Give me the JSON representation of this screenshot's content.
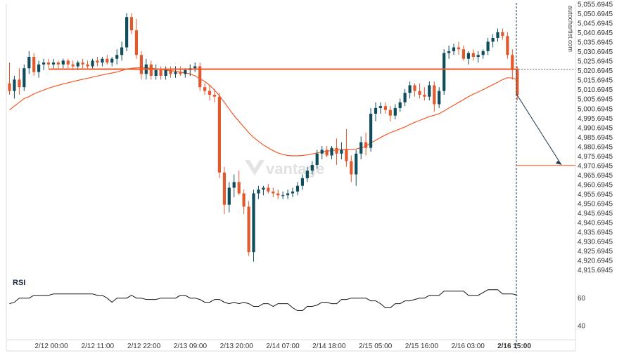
{
  "watermark": {
    "side": "autochartist.com",
    "center": "vantage"
  },
  "rsi_panel": {
    "label": "RSI"
  },
  "colors": {
    "bull": "#0f4c5c",
    "bear": "#e15a2d",
    "ma": "#f05a28",
    "level": "#f05a28",
    "forecast": "#1f3b4d",
    "rsi_line": "#111111",
    "axis": "#dddddd",
    "grid_panel": "#f6f6f6"
  },
  "chart_data": [
    {
      "type": "candlestick",
      "title": "",
      "x_tick_labels": [
        "2/12 00:00",
        "2/12 11:00",
        "2/12 22:00",
        "2/13 09:00",
        "2/13 20:00",
        "2/14 07:00",
        "2/14 18:00",
        "2/15 05:00",
        "2/15 16:00",
        "2/16 03:00",
        "2/16 15:00"
      ],
      "y_tick_labels": [
        "5,055.6945",
        "5,050.6945",
        "5,045.6945",
        "5,040.6945",
        "5,035.6945",
        "5,030.6945",
        "5,025.6945",
        "5,020.6945",
        "5,015.6945",
        "5,010.6945",
        "5,005.6945",
        "5,000.6945",
        "4,995.6945",
        "4,990.6945",
        "4,985.6945",
        "4,980.6945",
        "4,975.6945",
        "4,970.6945",
        "4,965.6945",
        "4,960.6945",
        "4,955.6945",
        "4,950.6945",
        "4,945.6945",
        "4,940.6945",
        "4,935.6945",
        "4,930.6945",
        "4,925.6945",
        "4,920.6945",
        "4,915.6945"
      ],
      "ylim": [
        4912.5,
        5056.5
      ],
      "y_scale": "linear",
      "grid": false,
      "resistance_level": 5021.5,
      "forecast": {
        "from_value": 5008.5,
        "to_value": 4970.7,
        "label_value": 4970.6945
      },
      "marked_time": "2/16 15:00",
      "candles": [
        [
          5014,
          5025,
          5008,
          5010
        ],
        [
          5010,
          5018,
          5006,
          5016
        ],
        [
          5016,
          5022,
          5008,
          5012
        ],
        [
          5012,
          5024,
          5010,
          5022
        ],
        [
          5022,
          5031,
          5019,
          5028
        ],
        [
          5028,
          5030,
          5018,
          5020
        ],
        [
          5020,
          5026,
          5017,
          5024
        ],
        [
          5024,
          5027,
          5021,
          5025
        ],
        [
          5025,
          5027,
          5022,
          5024
        ],
        [
          5024,
          5027,
          5022,
          5025
        ],
        [
          5025,
          5026,
          5022,
          5024
        ],
        [
          5024,
          5027,
          5022,
          5026
        ],
        [
          5026,
          5027,
          5022,
          5024
        ],
        [
          5024,
          5026,
          5021,
          5023
        ],
        [
          5023,
          5026,
          5021,
          5025
        ],
        [
          5025,
          5027,
          5022,
          5024
        ],
        [
          5024,
          5026,
          5022,
          5023
        ],
        [
          5023,
          5027,
          5022,
          5026
        ],
        [
          5026,
          5028,
          5023,
          5025
        ],
        [
          5025,
          5028,
          5023,
          5027
        ],
        [
          5027,
          5029,
          5024,
          5025
        ],
        [
          5025,
          5028,
          5023,
          5027
        ],
        [
          5027,
          5032,
          5024,
          5029
        ],
        [
          5029,
          5036,
          5026,
          5033
        ],
        [
          5033,
          5051,
          5031,
          5049
        ],
        [
          5049,
          5051,
          5040,
          5042
        ],
        [
          5042,
          5048,
          5027,
          5029
        ],
        [
          5029,
          5031,
          5016,
          5019
        ],
        [
          5019,
          5027,
          5016,
          5024
        ],
        [
          5024,
          5026,
          5016,
          5018
        ],
        [
          5018,
          5024,
          5016,
          5021
        ],
        [
          5021,
          5023,
          5016,
          5018
        ],
        [
          5018,
          5023,
          5016,
          5021
        ],
        [
          5021,
          5023,
          5017,
          5019
        ],
        [
          5019,
          5023,
          5017,
          5020
        ],
        [
          5020,
          5023,
          5018,
          5019
        ],
        [
          5019,
          5022,
          5017,
          5021
        ],
        [
          5021,
          5024,
          5018,
          5022
        ],
        [
          5022,
          5025,
          5020,
          5023
        ],
        [
          5023,
          5025,
          5010,
          5012
        ],
        [
          5012,
          5014,
          5008,
          5010
        ],
        [
          5010,
          5013,
          5005,
          5008
        ],
        [
          5008,
          5011,
          5004,
          5007
        ],
        [
          5007,
          5009,
          4964,
          4967
        ],
        [
          4967,
          4970,
          4945,
          4950
        ],
        [
          4950,
          4962,
          4946,
          4959
        ],
        [
          4959,
          4966,
          4954,
          4962
        ],
        [
          4962,
          4968,
          4955,
          4956
        ],
        [
          4956,
          4958,
          4945,
          4949
        ],
        [
          4949,
          4952,
          4923,
          4925
        ],
        [
          4925,
          4958,
          4920,
          4956
        ],
        [
          4956,
          4960,
          4953,
          4958
        ],
        [
          4958,
          4960,
          4955,
          4959
        ],
        [
          4959,
          4961,
          4956,
          4957
        ],
        [
          4957,
          4959,
          4954,
          4956
        ],
        [
          4956,
          4958,
          4953,
          4955
        ],
        [
          4955,
          4957,
          4953,
          4955
        ],
        [
          4955,
          4958,
          4953,
          4956
        ],
        [
          4956,
          4959,
          4954,
          4957
        ],
        [
          4957,
          4962,
          4955,
          4960
        ],
        [
          4960,
          4966,
          4958,
          4964
        ],
        [
          4964,
          4970,
          4962,
          4968
        ],
        [
          4968,
          4973,
          4966,
          4971
        ],
        [
          4971,
          4979,
          4969,
          4977
        ],
        [
          4977,
          4981,
          4974,
          4979
        ],
        [
          4979,
          4981,
          4975,
          4976
        ],
        [
          4976,
          4981,
          4974,
          4980
        ],
        [
          4980,
          4985,
          4971,
          4977
        ],
        [
          4977,
          4983,
          4974,
          4979
        ],
        [
          4979,
          4990,
          4970,
          4973
        ],
        [
          4973,
          4976,
          4962,
          4966
        ],
        [
          4966,
          4979,
          4960,
          4977
        ],
        [
          4977,
          4986,
          4974,
          4983
        ],
        [
          4983,
          4988,
          4976,
          4980
        ],
        [
          4980,
          5001,
          4978,
          4998
        ],
        [
          4998,
          5004,
          4994,
          5001
        ],
        [
          5001,
          5004,
          4998,
          5002
        ],
        [
          5002,
          5004,
          4998,
          5000
        ],
        [
          5000,
          5002,
          4994,
          4997
        ],
        [
          4997,
          5003,
          4995,
          5001
        ],
        [
          5001,
          5006,
          4999,
          5004
        ],
        [
          5004,
          5011,
          5002,
          5009
        ],
        [
          5009,
          5015,
          5006,
          5013
        ],
        [
          5013,
          5014,
          5007,
          5010
        ],
        [
          5010,
          5014,
          5006,
          5008
        ],
        [
          5008,
          5012,
          5005,
          5007
        ],
        [
          5007,
          5015,
          5005,
          5013
        ],
        [
          5013,
          5015,
          4999,
          5003
        ],
        [
          5003,
          5012,
          5001,
          5010
        ],
        [
          5010,
          5032,
          5008,
          5030
        ],
        [
          5030,
          5034,
          5027,
          5031
        ],
        [
          5031,
          5035,
          5029,
          5033
        ],
        [
          5033,
          5036,
          5029,
          5032
        ],
        [
          5032,
          5034,
          5026,
          5027
        ],
        [
          5027,
          5031,
          5024,
          5030
        ],
        [
          5030,
          5032,
          5026,
          5028
        ],
        [
          5028,
          5031,
          5025,
          5029
        ],
        [
          5029,
          5032,
          5027,
          5031
        ],
        [
          5031,
          5038,
          5029,
          5036
        ],
        [
          5036,
          5040,
          5033,
          5038
        ],
        [
          5038,
          5043,
          5036,
          5041
        ],
        [
          5041,
          5043,
          5037,
          5039
        ],
        [
          5039,
          5041,
          5027,
          5029
        ],
        [
          5029,
          5032,
          5016,
          5021
        ],
        [
          5021,
          5023,
          5005,
          5008
        ]
      ],
      "ma": [
        5000,
        5002,
        5004,
        5006,
        5007,
        5008.5,
        5009.5,
        5010.5,
        5011.5,
        5012.3,
        5013,
        5013.7,
        5014.3,
        5015,
        5015.6,
        5016.2,
        5016.7,
        5017.3,
        5017.9,
        5018.5,
        5019,
        5019.5,
        5020,
        5020.8,
        5021.5,
        5022,
        5022.2,
        5022.3,
        5022.2,
        5022,
        5021.7,
        5021.4,
        5021,
        5020.7,
        5020.4,
        5020,
        5019.5,
        5019,
        5018,
        5016.5,
        5015,
        5013,
        5010.5,
        5007.5,
        5004,
        5000.5,
        4997,
        4994,
        4991,
        4988,
        4985.5,
        4983.5,
        4981.5,
        4980,
        4978.5,
        4977.3,
        4976.5,
        4976,
        4975.8,
        4975.8,
        4976,
        4976.3,
        4976.8,
        4977.3,
        4977.9,
        4978.2,
        4978.6,
        4978.9,
        4979,
        4979.3,
        4979.2,
        4979.4,
        4980,
        4981,
        4982.5,
        4984,
        4985.5,
        4986.8,
        4988,
        4989,
        4990,
        4991,
        4992.3,
        4993.5,
        4994.5,
        4995.5,
        4996.5,
        4997.2,
        4998,
        4999.5,
        5001,
        5002.5,
        5004,
        5005.5,
        5007,
        5008.3,
        5009.5,
        5010.7,
        5012,
        5013.3,
        5014.6,
        5016,
        5017,
        5016.8,
        5016
      ]
    },
    {
      "type": "line",
      "name": "RSI",
      "y_tick_labels": [
        "60",
        "40"
      ],
      "ylim": [
        30,
        75
      ],
      "values": [
        56,
        57,
        60,
        60,
        60,
        62,
        62,
        62,
        62,
        63,
        63,
        63,
        63,
        63,
        63,
        63,
        63,
        63,
        62,
        62,
        60,
        57,
        60,
        60,
        60,
        62,
        60,
        60,
        59,
        59,
        59,
        60,
        60,
        60,
        60,
        62,
        62,
        60,
        60,
        59,
        57,
        57,
        59,
        59,
        57,
        56,
        57,
        56,
        57,
        56,
        54,
        54,
        56,
        56,
        54,
        56,
        56,
        56,
        53,
        51,
        51,
        54,
        54,
        55,
        57,
        57,
        56,
        56,
        59,
        59,
        60,
        60,
        60,
        60,
        58,
        58,
        56,
        53,
        53,
        56,
        56,
        58,
        58,
        59,
        60,
        60,
        62,
        62,
        62,
        65,
        65,
        65,
        65,
        65,
        62,
        62,
        62,
        64,
        66,
        66,
        66,
        63,
        63,
        63,
        62
      ]
    }
  ]
}
